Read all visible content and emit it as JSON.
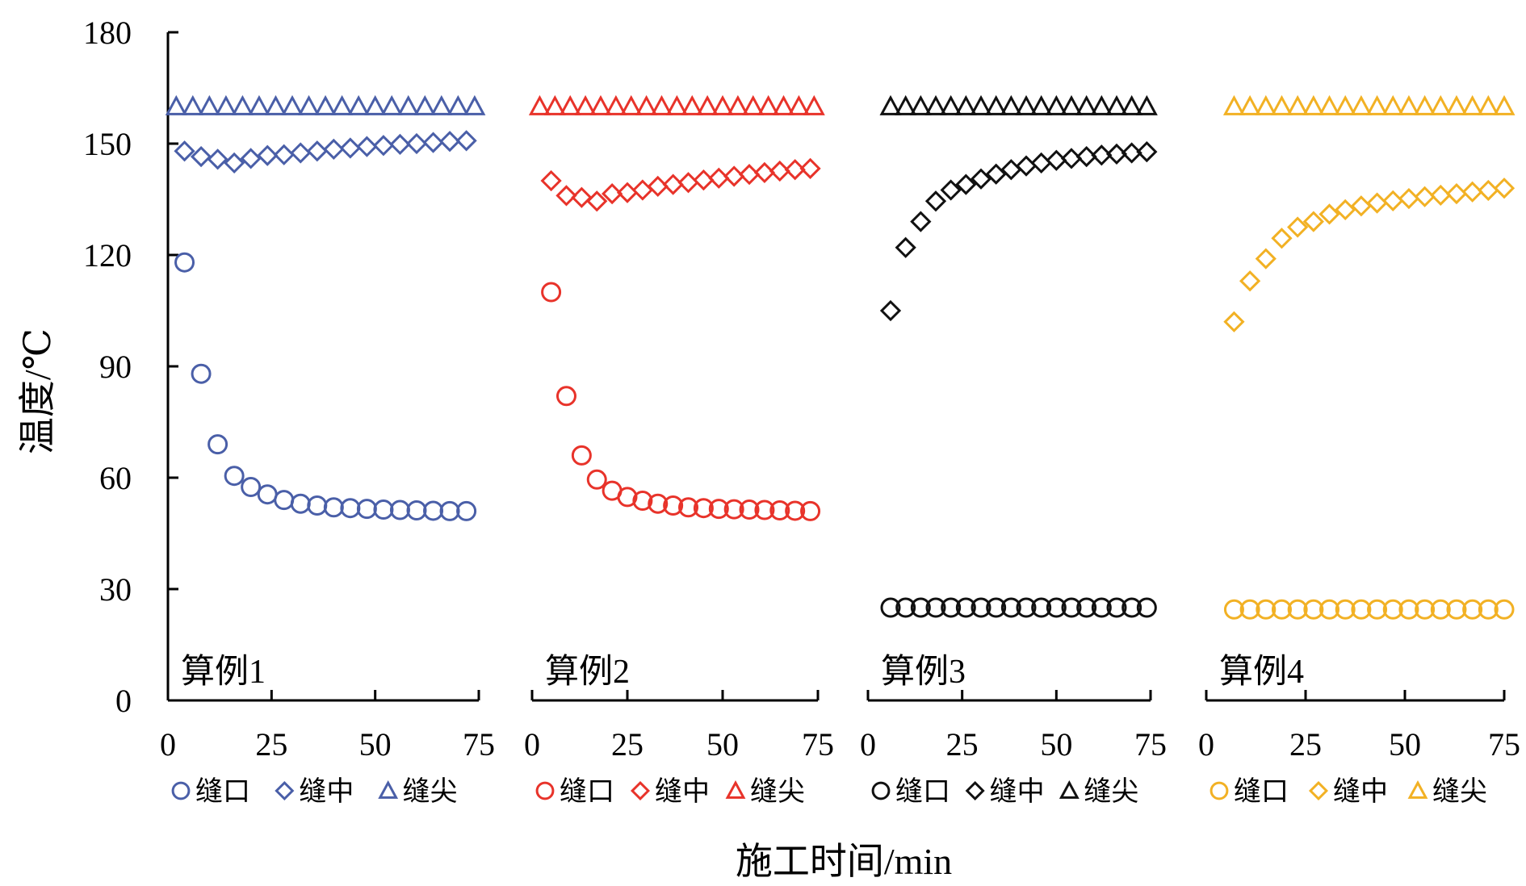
{
  "figure": {
    "ylabel": "温度/℃",
    "xlabel": "施工时间/min"
  },
  "chart_data": [
    {
      "type": "scatter",
      "annotation": "算例1",
      "xlim": [
        0,
        75
      ],
      "ylim": [
        0,
        180
      ],
      "xticks": [
        "0",
        "25",
        "50",
        "75"
      ],
      "yticks": [
        "0",
        "30",
        "60",
        "90",
        "120",
        "150",
        "180"
      ],
      "color": "#4A5FA8",
      "legend": [
        "缝口",
        "缝中",
        "缝尖"
      ],
      "series": [
        {
          "name": "缝口",
          "marker": "circle",
          "x": [
            4,
            8,
            12,
            16,
            20,
            24,
            28,
            32,
            36,
            40,
            44,
            48,
            52,
            56,
            60,
            64,
            68,
            72
          ],
          "y": [
            118,
            88,
            69,
            60.5,
            57.5,
            55.5,
            54,
            53,
            52.5,
            52,
            51.8,
            51.6,
            51.4,
            51.3,
            51.2,
            51.1,
            51,
            51
          ]
        },
        {
          "name": "缝中",
          "marker": "diamond",
          "x": [
            4,
            8,
            12,
            16,
            20,
            24,
            28,
            32,
            36,
            40,
            44,
            48,
            52,
            56,
            60,
            64,
            68,
            72
          ],
          "y": [
            148,
            146.5,
            145.8,
            144.8,
            146,
            146.8,
            147,
            147.5,
            148,
            148.5,
            148.8,
            149.2,
            149.5,
            149.8,
            150,
            150.3,
            150.6,
            150.8
          ]
        },
        {
          "name": "缝尖",
          "marker": "triangle",
          "x": [
            2,
            6,
            10,
            14,
            18,
            22,
            26,
            30,
            34,
            38,
            42,
            46,
            50,
            54,
            58,
            62,
            66,
            70,
            74
          ],
          "y": [
            160,
            160,
            160,
            160,
            160,
            160,
            160,
            160,
            160,
            160,
            160,
            160,
            160,
            160,
            160,
            160,
            160,
            160,
            160
          ]
        }
      ]
    },
    {
      "type": "scatter",
      "annotation": "算例2",
      "xlim": [
        0,
        75
      ],
      "ylim": [
        0,
        180
      ],
      "xticks": [
        "0",
        "25",
        "50",
        "75"
      ],
      "color": "#E8332A",
      "legend": [
        "缝口",
        "缝中",
        "缝尖"
      ],
      "series": [
        {
          "name": "缝口",
          "marker": "circle",
          "x": [
            5,
            9,
            13,
            17,
            21,
            25,
            29,
            33,
            37,
            41,
            45,
            49,
            53,
            57,
            61,
            65,
            69,
            73
          ],
          "y": [
            110,
            82,
            66,
            59.5,
            56.5,
            54.8,
            53.8,
            53,
            52.5,
            52,
            51.8,
            51.6,
            51.5,
            51.4,
            51.3,
            51.2,
            51.1,
            51
          ]
        },
        {
          "name": "缝中",
          "marker": "diamond",
          "x": [
            5,
            9,
            13,
            17,
            21,
            25,
            29,
            33,
            37,
            41,
            45,
            49,
            53,
            57,
            61,
            65,
            69,
            73
          ],
          "y": [
            140,
            136,
            135.5,
            134.5,
            136.5,
            136.8,
            137.5,
            138.5,
            139,
            139.5,
            140.2,
            140.7,
            141.2,
            141.7,
            142.2,
            142.6,
            143,
            143.3
          ]
        },
        {
          "name": "缝尖",
          "marker": "triangle",
          "x": [
            2,
            6,
            10,
            14,
            18,
            22,
            26,
            30,
            34,
            38,
            42,
            46,
            50,
            54,
            58,
            62,
            66,
            70,
            74
          ],
          "y": [
            160,
            160,
            160,
            160,
            160,
            160,
            160,
            160,
            160,
            160,
            160,
            160,
            160,
            160,
            160,
            160,
            160,
            160,
            160
          ]
        }
      ]
    },
    {
      "type": "scatter",
      "annotation": "算例3",
      "xlim": [
        0,
        75
      ],
      "ylim": [
        0,
        180
      ],
      "xticks": [
        "0",
        "25",
        "50",
        "75"
      ],
      "color": "#111111",
      "legend": [
        "缝口",
        "缝中",
        "缝尖"
      ],
      "series": [
        {
          "name": "缝口",
          "marker": "circle",
          "x": [
            6,
            10,
            14,
            18,
            22,
            26,
            30,
            34,
            38,
            42,
            46,
            50,
            54,
            58,
            62,
            66,
            70,
            74
          ],
          "y": [
            25,
            25,
            25,
            25,
            25,
            25,
            25,
            25,
            25,
            25,
            25,
            25,
            25,
            25,
            25,
            25,
            25,
            25
          ]
        },
        {
          "name": "缝中",
          "marker": "diamond",
          "x": [
            6,
            10,
            14,
            18,
            22,
            26,
            30,
            34,
            38,
            42,
            46,
            50,
            54,
            58,
            62,
            66,
            70,
            74
          ],
          "y": [
            105,
            122,
            129,
            134.5,
            137.5,
            139,
            140.5,
            141.8,
            143,
            144,
            144.8,
            145.5,
            146,
            146.5,
            146.9,
            147.2,
            147.5,
            147.8
          ]
        },
        {
          "name": "缝尖",
          "marker": "triangle",
          "x": [
            6,
            10,
            14,
            18,
            22,
            26,
            30,
            34,
            38,
            42,
            46,
            50,
            54,
            58,
            62,
            66,
            70,
            74
          ],
          "y": [
            160,
            160,
            160,
            160,
            160,
            160,
            160,
            160,
            160,
            160,
            160,
            160,
            160,
            160,
            160,
            160,
            160,
            160
          ]
        }
      ]
    },
    {
      "type": "scatter",
      "annotation": "算例4",
      "xlim": [
        0,
        75
      ],
      "ylim": [
        0,
        180
      ],
      "xticks": [
        "0",
        "25",
        "50",
        "75"
      ],
      "color": "#F2B124",
      "legend": [
        "缝口",
        "缝中",
        "缝尖"
      ],
      "series": [
        {
          "name": "缝口",
          "marker": "circle",
          "x": [
            7,
            11,
            15,
            19,
            23,
            27,
            31,
            35,
            39,
            43,
            47,
            51,
            55,
            59,
            63,
            67,
            71,
            75
          ],
          "y": [
            24.5,
            24.5,
            24.5,
            24.5,
            24.5,
            24.5,
            24.5,
            24.5,
            24.5,
            24.5,
            24.5,
            24.5,
            24.5,
            24.5,
            24.5,
            24.5,
            24.5,
            24.5
          ]
        },
        {
          "name": "缝中",
          "marker": "diamond",
          "x": [
            7,
            11,
            15,
            19,
            23,
            27,
            31,
            35,
            39,
            43,
            47,
            51,
            55,
            59,
            63,
            67,
            71,
            75
          ],
          "y": [
            102,
            113,
            119,
            124.5,
            127.5,
            129,
            131,
            132.2,
            133.2,
            134,
            134.6,
            135.2,
            135.7,
            136.1,
            136.5,
            137,
            137.4,
            138
          ]
        },
        {
          "name": "缝尖",
          "marker": "triangle",
          "x": [
            7,
            11,
            15,
            19,
            23,
            27,
            31,
            35,
            39,
            43,
            47,
            51,
            55,
            59,
            63,
            67,
            71,
            75
          ],
          "y": [
            160,
            160,
            160,
            160,
            160,
            160,
            160,
            160,
            160,
            160,
            160,
            160,
            160,
            160,
            160,
            160,
            160,
            160
          ]
        }
      ]
    }
  ]
}
